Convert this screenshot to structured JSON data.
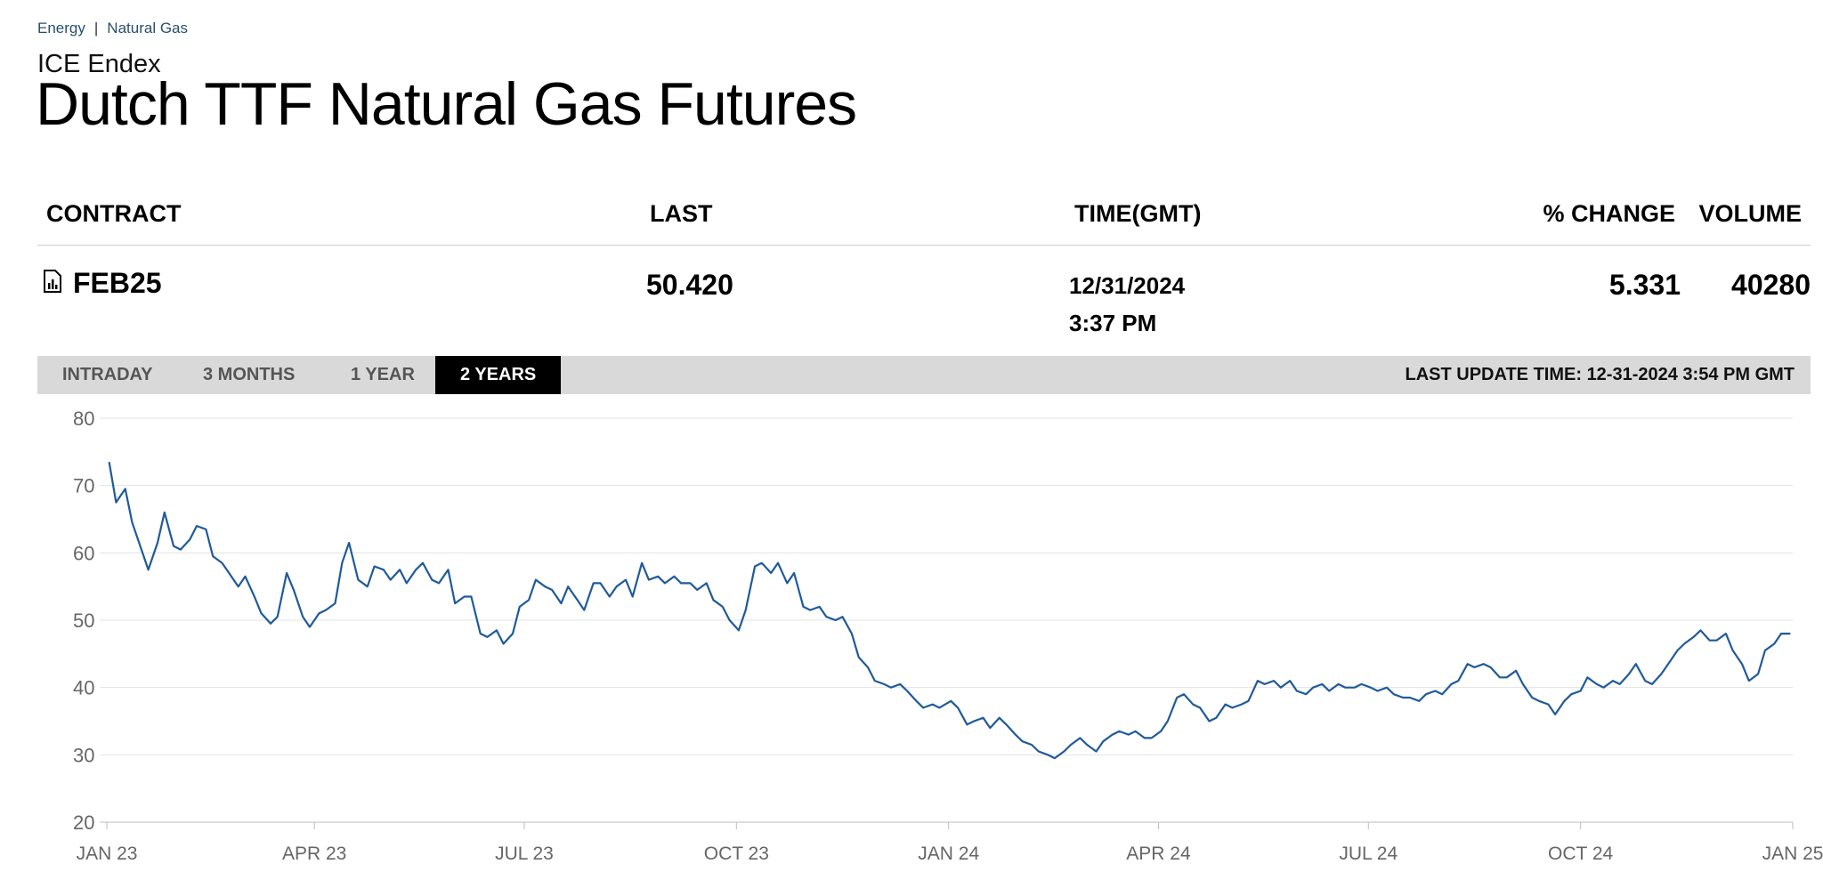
{
  "breadcrumb": {
    "items": [
      "Energy",
      "Natural Gas"
    ],
    "separator": "|"
  },
  "exchange": "ICE Endex",
  "title": "Dutch TTF Natural Gas Futures",
  "table": {
    "headers": {
      "contract": "CONTRACT",
      "last": "LAST",
      "time": "TIME(GMT)",
      "pct_change": "% CHANGE",
      "volume": "VOLUME"
    },
    "row": {
      "contract": "FEB25",
      "last": "50.420",
      "date": "12/31/2024",
      "time": "3:37 PM",
      "pct_change": "5.331",
      "volume": "40280",
      "icon": "chart-doc-icon"
    }
  },
  "tabs": [
    {
      "label": "INTRADAY",
      "active": false
    },
    {
      "label": "3 MONTHS",
      "active": false
    },
    {
      "label": "1 YEAR",
      "active": false
    },
    {
      "label": "2 YEARS",
      "active": true
    }
  ],
  "last_update": "LAST UPDATE TIME: 12-31-2024 3:54 PM GMT",
  "colors": {
    "line": "#1f5a9a",
    "grid": "#e3e3e3",
    "axis_text": "#666666",
    "active_tab": "#000000",
    "tabbar": "#d9d9d9"
  },
  "chart_data": {
    "type": "line",
    "title": "",
    "xlabel": "",
    "ylabel": "",
    "grid": true,
    "ylim": [
      20,
      80
    ],
    "yticks": [
      20,
      30,
      40,
      50,
      60,
      70,
      80
    ],
    "xlim": [
      "2023-01-02",
      "2024-12-31"
    ],
    "xticks": [
      {
        "label": "JAN 23",
        "date": "2023-01-01"
      },
      {
        "label": "APR 23",
        "date": "2023-04-01"
      },
      {
        "label": "JUL 23",
        "date": "2023-07-01"
      },
      {
        "label": "OCT 23",
        "date": "2023-10-01"
      },
      {
        "label": "JAN 24",
        "date": "2024-01-01"
      },
      {
        "label": "APR 24",
        "date": "2024-04-01"
      },
      {
        "label": "JUL 24",
        "date": "2024-07-01"
      },
      {
        "label": "OCT 24",
        "date": "2024-10-01"
      },
      {
        "label": "JAN 25",
        "date": "2025-01-01"
      }
    ],
    "series": [
      {
        "points": [
          [
            "2023-01-02",
            73.5
          ],
          [
            "2023-01-05",
            67.5
          ],
          [
            "2023-01-09",
            69.5
          ],
          [
            "2023-01-12",
            64.5
          ],
          [
            "2023-01-16",
            60.5
          ],
          [
            "2023-01-19",
            57.5
          ],
          [
            "2023-01-23",
            61.5
          ],
          [
            "2023-01-26",
            66.0
          ],
          [
            "2023-01-30",
            61.0
          ],
          [
            "2023-02-02",
            60.5
          ],
          [
            "2023-02-06",
            62.0
          ],
          [
            "2023-02-09",
            64.0
          ],
          [
            "2023-02-13",
            63.5
          ],
          [
            "2023-02-16",
            59.5
          ],
          [
            "2023-02-20",
            58.5
          ],
          [
            "2023-02-23",
            57.0
          ],
          [
            "2023-02-27",
            55.0
          ],
          [
            "2023-03-02",
            56.5
          ],
          [
            "2023-03-06",
            53.5
          ],
          [
            "2023-03-09",
            51.0
          ],
          [
            "2023-03-13",
            49.5
          ],
          [
            "2023-03-16",
            50.5
          ],
          [
            "2023-03-20",
            57.0
          ],
          [
            "2023-03-23",
            54.5
          ],
          [
            "2023-03-27",
            50.5
          ],
          [
            "2023-03-30",
            49.0
          ],
          [
            "2023-04-03",
            51.0
          ],
          [
            "2023-04-06",
            51.5
          ],
          [
            "2023-04-10",
            52.5
          ],
          [
            "2023-04-13",
            58.5
          ],
          [
            "2023-04-16",
            61.5
          ],
          [
            "2023-04-20",
            56.0
          ],
          [
            "2023-04-24",
            55.0
          ],
          [
            "2023-04-27",
            58.0
          ],
          [
            "2023-05-01",
            57.5
          ],
          [
            "2023-05-04",
            56.0
          ],
          [
            "2023-05-08",
            57.5
          ],
          [
            "2023-05-11",
            55.5
          ],
          [
            "2023-05-15",
            57.5
          ],
          [
            "2023-05-18",
            58.5
          ],
          [
            "2023-05-22",
            56.0
          ],
          [
            "2023-05-25",
            55.5
          ],
          [
            "2023-05-29",
            57.5
          ],
          [
            "2023-06-01",
            52.5
          ],
          [
            "2023-06-05",
            53.5
          ],
          [
            "2023-06-08",
            53.5
          ],
          [
            "2023-06-12",
            48.0
          ],
          [
            "2023-06-15",
            47.5
          ],
          [
            "2023-06-19",
            48.5
          ],
          [
            "2023-06-22",
            46.5
          ],
          [
            "2023-06-26",
            48.0
          ],
          [
            "2023-06-29",
            52.0
          ],
          [
            "2023-07-03",
            53.0
          ],
          [
            "2023-07-06",
            56.0
          ],
          [
            "2023-07-10",
            55.0
          ],
          [
            "2023-07-13",
            54.5
          ],
          [
            "2023-07-17",
            52.5
          ],
          [
            "2023-07-20",
            55.0
          ],
          [
            "2023-07-24",
            53.0
          ],
          [
            "2023-07-27",
            51.5
          ],
          [
            "2023-07-31",
            55.5
          ],
          [
            "2023-08-03",
            55.5
          ],
          [
            "2023-08-07",
            53.5
          ],
          [
            "2023-08-10",
            55.0
          ],
          [
            "2023-08-14",
            56.0
          ],
          [
            "2023-08-17",
            53.5
          ],
          [
            "2023-08-21",
            58.5
          ],
          [
            "2023-08-24",
            56.0
          ],
          [
            "2023-08-28",
            56.5
          ],
          [
            "2023-08-31",
            55.5
          ],
          [
            "2023-09-04",
            56.5
          ],
          [
            "2023-09-07",
            55.5
          ],
          [
            "2023-09-11",
            55.5
          ],
          [
            "2023-09-14",
            54.5
          ],
          [
            "2023-09-18",
            55.5
          ],
          [
            "2023-09-21",
            53.0
          ],
          [
            "2023-09-25",
            52.0
          ],
          [
            "2023-09-28",
            50.0
          ],
          [
            "2023-10-02",
            48.5
          ],
          [
            "2023-10-05",
            51.5
          ],
          [
            "2023-10-09",
            58.0
          ],
          [
            "2023-10-12",
            58.5
          ],
          [
            "2023-10-16",
            57.0
          ],
          [
            "2023-10-19",
            58.5
          ],
          [
            "2023-10-23",
            55.5
          ],
          [
            "2023-10-26",
            57.0
          ],
          [
            "2023-10-30",
            52.0
          ],
          [
            "2023-11-02",
            51.5
          ],
          [
            "2023-11-06",
            52.0
          ],
          [
            "2023-11-09",
            50.5
          ],
          [
            "2023-11-13",
            50.0
          ],
          [
            "2023-11-16",
            50.5
          ],
          [
            "2023-11-20",
            48.0
          ],
          [
            "2023-11-23",
            44.5
          ],
          [
            "2023-11-27",
            43.0
          ],
          [
            "2023-11-30",
            41.0
          ],
          [
            "2023-12-04",
            40.5
          ],
          [
            "2023-12-07",
            40.0
          ],
          [
            "2023-12-11",
            40.5
          ],
          [
            "2023-12-14",
            39.5
          ],
          [
            "2023-12-18",
            38.0
          ],
          [
            "2023-12-21",
            37.0
          ],
          [
            "2023-12-25",
            37.5
          ],
          [
            "2023-12-28",
            37.0
          ],
          [
            "2024-01-02",
            38.0
          ],
          [
            "2024-01-05",
            37.0
          ],
          [
            "2024-01-09",
            34.5
          ],
          [
            "2024-01-12",
            35.0
          ],
          [
            "2024-01-16",
            35.5
          ],
          [
            "2024-01-19",
            34.0
          ],
          [
            "2024-01-23",
            35.5
          ],
          [
            "2024-01-26",
            34.5
          ],
          [
            "2024-01-30",
            33.0
          ],
          [
            "2024-02-02",
            32.0
          ],
          [
            "2024-02-06",
            31.5
          ],
          [
            "2024-02-09",
            30.5
          ],
          [
            "2024-02-13",
            30.0
          ],
          [
            "2024-02-16",
            29.5
          ],
          [
            "2024-02-20",
            30.5
          ],
          [
            "2024-02-23",
            31.5
          ],
          [
            "2024-02-27",
            32.5
          ],
          [
            "2024-03-01",
            31.5
          ],
          [
            "2024-03-05",
            30.5
          ],
          [
            "2024-03-08",
            32.0
          ],
          [
            "2024-03-12",
            33.0
          ],
          [
            "2024-03-15",
            33.5
          ],
          [
            "2024-03-19",
            33.0
          ],
          [
            "2024-03-22",
            33.5
          ],
          [
            "2024-03-26",
            32.5
          ],
          [
            "2024-03-29",
            32.5
          ],
          [
            "2024-04-02",
            33.5
          ],
          [
            "2024-04-05",
            35.0
          ],
          [
            "2024-04-09",
            38.5
          ],
          [
            "2024-04-12",
            39.0
          ],
          [
            "2024-04-16",
            37.5
          ],
          [
            "2024-04-19",
            37.0
          ],
          [
            "2024-04-23",
            35.0
          ],
          [
            "2024-04-26",
            35.5
          ],
          [
            "2024-04-30",
            37.5
          ],
          [
            "2024-05-03",
            37.0
          ],
          [
            "2024-05-07",
            37.5
          ],
          [
            "2024-05-10",
            38.0
          ],
          [
            "2024-05-14",
            41.0
          ],
          [
            "2024-05-17",
            40.5
          ],
          [
            "2024-05-21",
            41.0
          ],
          [
            "2024-05-24",
            40.0
          ],
          [
            "2024-05-28",
            41.0
          ],
          [
            "2024-05-31",
            39.5
          ],
          [
            "2024-06-04",
            39.0
          ],
          [
            "2024-06-07",
            40.0
          ],
          [
            "2024-06-11",
            40.5
          ],
          [
            "2024-06-14",
            39.5
          ],
          [
            "2024-06-18",
            40.5
          ],
          [
            "2024-06-21",
            40.0
          ],
          [
            "2024-06-25",
            40.0
          ],
          [
            "2024-06-28",
            40.5
          ],
          [
            "2024-07-02",
            40.0
          ],
          [
            "2024-07-05",
            39.5
          ],
          [
            "2024-07-09",
            40.0
          ],
          [
            "2024-07-12",
            39.0
          ],
          [
            "2024-07-16",
            38.5
          ],
          [
            "2024-07-19",
            38.5
          ],
          [
            "2024-07-23",
            38.0
          ],
          [
            "2024-07-26",
            39.0
          ],
          [
            "2024-07-30",
            39.5
          ],
          [
            "2024-08-02",
            39.0
          ],
          [
            "2024-08-06",
            40.5
          ],
          [
            "2024-08-09",
            41.0
          ],
          [
            "2024-08-13",
            43.5
          ],
          [
            "2024-08-16",
            43.0
          ],
          [
            "2024-08-20",
            43.5
          ],
          [
            "2024-08-23",
            43.0
          ],
          [
            "2024-08-27",
            41.5
          ],
          [
            "2024-08-30",
            41.5
          ],
          [
            "2024-09-03",
            42.5
          ],
          [
            "2024-09-06",
            40.5
          ],
          [
            "2024-09-10",
            38.5
          ],
          [
            "2024-09-13",
            38.0
          ],
          [
            "2024-09-17",
            37.5
          ],
          [
            "2024-09-20",
            36.0
          ],
          [
            "2024-09-24",
            38.0
          ],
          [
            "2024-09-27",
            39.0
          ],
          [
            "2024-10-01",
            39.5
          ],
          [
            "2024-10-04",
            41.5
          ],
          [
            "2024-10-08",
            40.5
          ],
          [
            "2024-10-11",
            40.0
          ],
          [
            "2024-10-15",
            41.0
          ],
          [
            "2024-10-18",
            40.5
          ],
          [
            "2024-10-22",
            42.0
          ],
          [
            "2024-10-25",
            43.5
          ],
          [
            "2024-10-29",
            41.0
          ],
          [
            "2024-11-01",
            40.5
          ],
          [
            "2024-11-05",
            42.0
          ],
          [
            "2024-11-08",
            43.5
          ],
          [
            "2024-11-12",
            45.5
          ],
          [
            "2024-11-15",
            46.5
          ],
          [
            "2024-11-19",
            47.5
          ],
          [
            "2024-11-22",
            48.5
          ],
          [
            "2024-11-26",
            47.0
          ],
          [
            "2024-11-29",
            47.0
          ],
          [
            "2024-12-03",
            48.0
          ],
          [
            "2024-12-06",
            45.5
          ],
          [
            "2024-12-10",
            43.5
          ],
          [
            "2024-12-13",
            41.0
          ],
          [
            "2024-12-17",
            42.0
          ],
          [
            "2024-12-20",
            45.5
          ],
          [
            "2024-12-24",
            46.5
          ],
          [
            "2024-12-27",
            48.0
          ],
          [
            "2024-12-31",
            48.0
          ]
        ]
      }
    ]
  }
}
